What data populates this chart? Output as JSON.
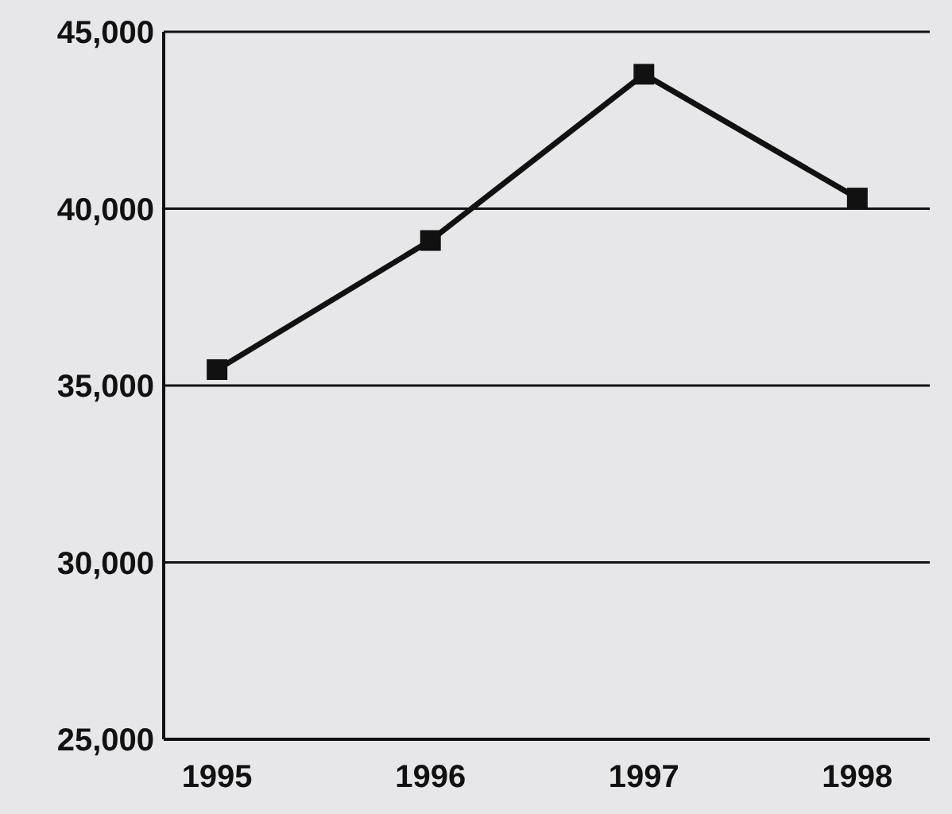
{
  "chart_data": {
    "type": "line",
    "categories": [
      "1995",
      "1996",
      "1997",
      "1998"
    ],
    "series": [
      {
        "color": "#111111",
        "values": [
          35450,
          39100,
          43800,
          40300
        ]
      }
    ],
    "ylim": [
      25000,
      45000
    ],
    "yticks": [
      {
        "value": 25000,
        "label": "25,000"
      },
      {
        "value": 30000,
        "label": "30,000"
      },
      {
        "value": 35000,
        "label": "35,000"
      },
      {
        "value": 40000,
        "label": "40,000"
      },
      {
        "value": 45000,
        "label": "45,000"
      }
    ],
    "grid": "y",
    "marker": "square",
    "line_style": "solid"
  }
}
